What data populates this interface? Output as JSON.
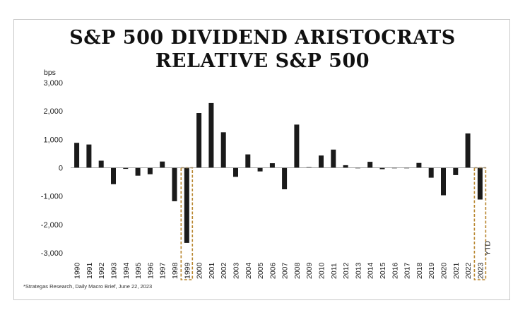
{
  "title_line1": "S&P 500 DIVIDEND ARISTOCRATS",
  "title_line2": "RELATIVE S&P 500",
  "source_note": "*Strategas Research, Daily Macro Brief, June 22, 2023",
  "colors": {
    "bar": "#1a1a1a",
    "highlight": "#b8862e",
    "axis": "#888888"
  },
  "chart_data": {
    "type": "bar",
    "title": "S&P 500 DIVIDEND ARISTOCRATS RELATIVE S&P 500",
    "ylabel": "bps",
    "xlabel": "",
    "ylim": [
      -3000,
      3000
    ],
    "yticks": [
      3000,
      2000,
      1000,
      0,
      -1000,
      -2000,
      -3000
    ],
    "ytick_labels": [
      "3,000",
      "2,000",
      "1,000",
      "0",
      "-1,000",
      "-2,000",
      "-3,000"
    ],
    "grid": false,
    "categories": [
      "1990",
      "1991",
      "1992",
      "1993",
      "1994",
      "1995",
      "1996",
      "1997",
      "1998",
      "1999",
      "2000",
      "2001",
      "2002",
      "2003",
      "2004",
      "2005",
      "2006",
      "2007",
      "2008",
      "2009",
      "2010",
      "2011",
      "2012",
      "2013",
      "2014",
      "2015",
      "2016",
      "2017",
      "2018",
      "2019",
      "2020",
      "2021",
      "2022",
      "2023"
    ],
    "values": [
      880,
      820,
      250,
      -580,
      -40,
      -280,
      -230,
      220,
      -1180,
      -2650,
      1930,
      2280,
      1250,
      -320,
      470,
      -130,
      160,
      -760,
      1520,
      20,
      430,
      640,
      90,
      -20,
      210,
      -50,
      -20,
      -20,
      170,
      -350,
      -970,
      -260,
      1210,
      -1120
    ],
    "highlighted": [
      "1999",
      "2023"
    ],
    "annotations": [
      {
        "category": "2023",
        "text": "YTD"
      }
    ]
  }
}
